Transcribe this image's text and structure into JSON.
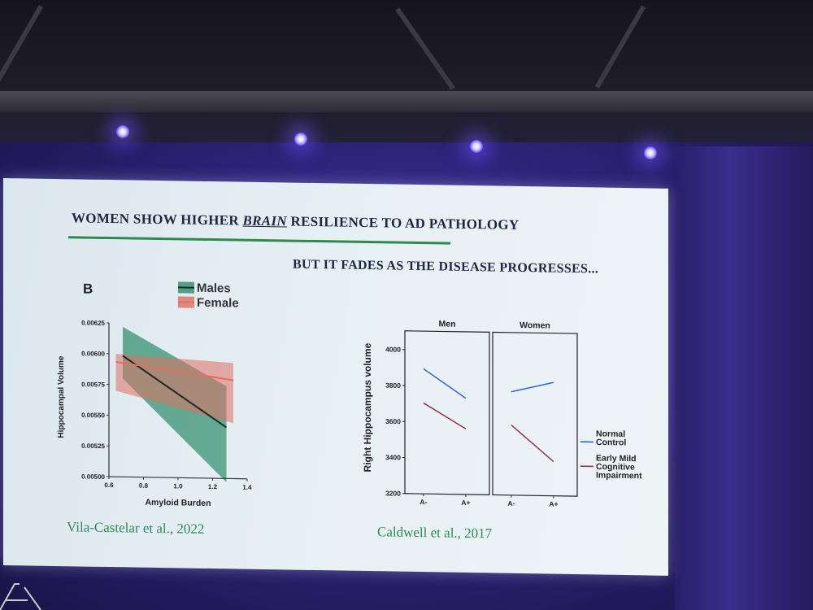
{
  "slide": {
    "title_prefix": "WOMEN SHOW HIGHER ",
    "title_emphasis": "BRAIN",
    "title_suffix": " RESILIENCE TO AD PATHOLOGY",
    "subtitle": "BUT IT FADES AS THE DISEASE PROGRESSES...",
    "citation_left": "Vila-Castelar et al., 2022",
    "citation_right": "Caldwell et al., 2017"
  },
  "colors": {
    "title_rule": "#2f8a4f",
    "citation": "#2e8b57",
    "males": "#2e8b6a",
    "females": "#e07060",
    "normal_control": "#3a64c8",
    "early_mild": "#8a3848"
  },
  "chart_data": [
    {
      "type": "line",
      "panel_letter": "B",
      "xlabel": "Amyloid Burden",
      "ylabel": "Hippocampal Volume",
      "xlim": [
        0.6,
        1.4
      ],
      "ylim": [
        0.005,
        0.00625
      ],
      "x_ticks": [
        "0.6",
        "0.8",
        "1.0",
        "1.2",
        "1.4"
      ],
      "y_ticks": [
        "0.00500",
        "0.00525",
        "0.00550",
        "0.00575",
        "0.00600",
        "0.00625"
      ],
      "legend": [
        "Males",
        "Female"
      ],
      "legend_placement": "top",
      "series": [
        {
          "name": "Males",
          "x": [
            0.68,
            1.28
          ],
          "y": [
            0.005985,
            0.005415
          ],
          "ci_upper": [
            0.00622,
            0.00575
          ],
          "ci_lower": [
            0.0058,
            0.00497
          ]
        },
        {
          "name": "Female",
          "x": [
            0.64,
            1.32
          ],
          "y": [
            0.005935,
            0.0058
          ],
          "ci_upper": [
            0.006,
            0.00594
          ],
          "ci_lower": [
            0.0057,
            0.00545
          ]
        }
      ]
    },
    {
      "type": "line",
      "ylabel": "Right Hippocampus volume",
      "ylim": [
        3200,
        4050
      ],
      "y_ticks": [
        "3200",
        "3400",
        "3600",
        "3800",
        "4000"
      ],
      "categories": [
        "A-",
        "A+"
      ],
      "legend": [
        "Normal Control",
        "Early Mild Cognitive Impairment"
      ],
      "legend_placement": "right",
      "panels": [
        {
          "title": "Men",
          "series": [
            {
              "name": "Normal Control",
              "values": [
                3895,
                3735
              ]
            },
            {
              "name": "Early Mild Cognitive Impairment",
              "values": [
                3705,
                3565
              ]
            }
          ]
        },
        {
          "title": "Women",
          "series": [
            {
              "name": "Normal Control",
              "values": [
                3775,
                3830
              ]
            },
            {
              "name": "Early Mild Cognitive Impairment",
              "values": [
                3590,
                3390
              ]
            }
          ]
        }
      ]
    }
  ]
}
